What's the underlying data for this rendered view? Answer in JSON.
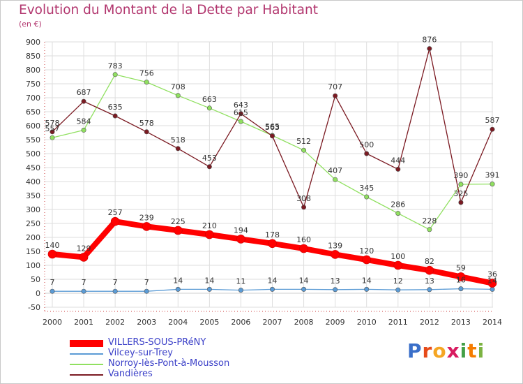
{
  "title": "Evolution du Montant de la Dette par Habitant",
  "subtitle": "(en €)",
  "logo": {
    "text": "Proxiti",
    "letters": [
      {
        "ch": "P",
        "color": "#3a6fc9"
      },
      {
        "ch": "r",
        "color": "#e64a19"
      },
      {
        "ch": "o",
        "color": "#f5a623"
      },
      {
        "ch": "x",
        "color": "#d81b60"
      },
      {
        "ch": "i",
        "color": "#43a047"
      },
      {
        "ch": "t",
        "color": "#f57c00"
      },
      {
        "ch": "i",
        "color": "#7cb342"
      }
    ]
  },
  "legend": [
    {
      "label": "VILLERS-SOUS-PRéNY",
      "color": "#ff0000",
      "thick": true
    },
    {
      "label": "Vilcey-sur-Trey",
      "color": "#5b9bd5"
    },
    {
      "label": "Norroy-lès-Pont-à-Mousson",
      "color": "#90e060"
    },
    {
      "label": "Vandières",
      "color": "#7b1a22"
    }
  ],
  "chart_data": {
    "type": "line",
    "x": [
      "2000",
      "2001",
      "2002",
      "2003",
      "2004",
      "2005",
      "2006",
      "2007",
      "2008",
      "2009",
      "2010",
      "2011",
      "2012",
      "2013",
      "2014"
    ],
    "ylim": [
      -50,
      900
    ],
    "yticks": [
      -50,
      0,
      50,
      100,
      150,
      200,
      250,
      300,
      350,
      400,
      450,
      500,
      550,
      600,
      650,
      700,
      750,
      800,
      850,
      900
    ],
    "grid": true,
    "legend_position": "bottom-left",
    "series": [
      {
        "name": "VILLERS-SOUS-PRéNY",
        "color": "#ff0000",
        "values": [
          140,
          129,
          257,
          239,
          225,
          210,
          194,
          178,
          160,
          139,
          120,
          100,
          82,
          59,
          36
        ]
      },
      {
        "name": "Vilcey-sur-Trey",
        "color": "#5b9bd5",
        "values": [
          7,
          7,
          7,
          7,
          14,
          14,
          11,
          14,
          14,
          13,
          14,
          12,
          13,
          16,
          14
        ]
      },
      {
        "name": "Norroy-lès-Pont-à-Mousson",
        "color": "#90e060",
        "values": [
          557,
          584,
          783,
          756,
          708,
          663,
          615,
          565,
          512,
          407,
          345,
          286,
          228,
          390,
          391
        ]
      },
      {
        "name": "Vandières",
        "color": "#7b1a22",
        "values": [
          578,
          687,
          635,
          578,
          518,
          453,
          643,
          563,
          308,
          707,
          500,
          444,
          876,
          325,
          587
        ]
      }
    ]
  }
}
